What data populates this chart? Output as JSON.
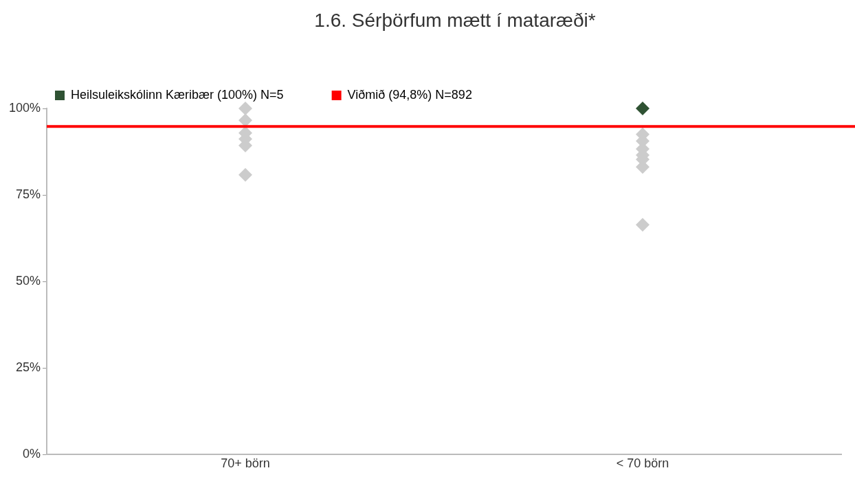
{
  "chart_data": {
    "type": "scatter",
    "title": "1.6. Sérþörfum mætt í mataræði*",
    "categories": [
      "70+ börn",
      "< 70 börn"
    ],
    "series": [
      {
        "color": "#cccccc",
        "x": [
          "70+ börn",
          "70+ börn",
          "70+ börn",
          "70+ börn",
          "70+ börn",
          "70+ börn",
          "70+ börn",
          "< 70 börn",
          "< 70 börn",
          "< 70 börn",
          "< 70 börn",
          "< 70 börn",
          "< 70 börn",
          "< 70 börn",
          "< 70 börn"
        ],
        "values": [
          100,
          96.6,
          null,
          92.9,
          91.2,
          89.3,
          80.8,
          null,
          92.5,
          90.6,
          88.3,
          86.5,
          85.3,
          83.1,
          66.4
        ]
      },
      {
        "name": "Heilsuleikskólinn Kæribær (100%) N=5",
        "color": "#2f5233",
        "x": [
          "< 70 börn"
        ],
        "values": [
          100
        ]
      }
    ],
    "ref_lines": [
      {
        "axis": "y",
        "value": 94.8,
        "label": "Viðmið (94,8%) N=892",
        "color": "#ff0000"
      }
    ],
    "ylim": [
      0,
      100
    ],
    "yticks": [
      {
        "value": 0,
        "label": "0%"
      },
      {
        "value": 25,
        "label": "25%"
      },
      {
        "value": 50,
        "label": "50%"
      },
      {
        "value": 75,
        "label": "75%"
      },
      {
        "value": 100,
        "label": "100%"
      }
    ],
    "marker": "diamond",
    "grid": false,
    "legend": "top left"
  }
}
